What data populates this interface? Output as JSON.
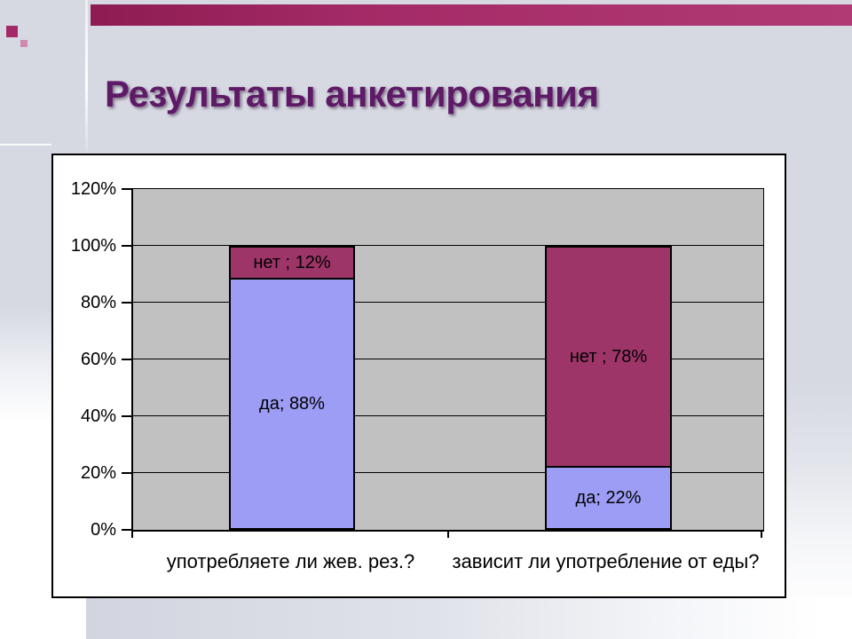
{
  "slide": {
    "title": "Результаты анкетирования"
  },
  "chart_data": {
    "type": "bar",
    "subtype": "stacked-column-100",
    "title": "",
    "xlabel": "",
    "ylabel": "",
    "categories": [
      "употребляете ли жев. рез.?",
      "зависит ли употребление от еды?"
    ],
    "series": [
      {
        "name": "да",
        "values": [
          88,
          22
        ]
      },
      {
        "name": "нет",
        "values": [
          12,
          78
        ]
      }
    ],
    "point_labels": [
      {
        "da": "да; 88%",
        "net": "нет ; 12%"
      },
      {
        "da": "да; 22%",
        "net": "нет ; 78%"
      }
    ],
    "y_ticks": [
      "120%",
      "100%",
      "80%",
      "60%",
      "40%",
      "20%",
      "0%"
    ],
    "ylim": [
      0,
      120
    ],
    "unit": "%",
    "grid": true,
    "legend": "none",
    "colors": {
      "da": "#9d9df5",
      "net": "#9e3569",
      "plot_bg": "#c1c1c1",
      "accent_bar": "#a32a66",
      "title": "#5e1a66"
    }
  }
}
